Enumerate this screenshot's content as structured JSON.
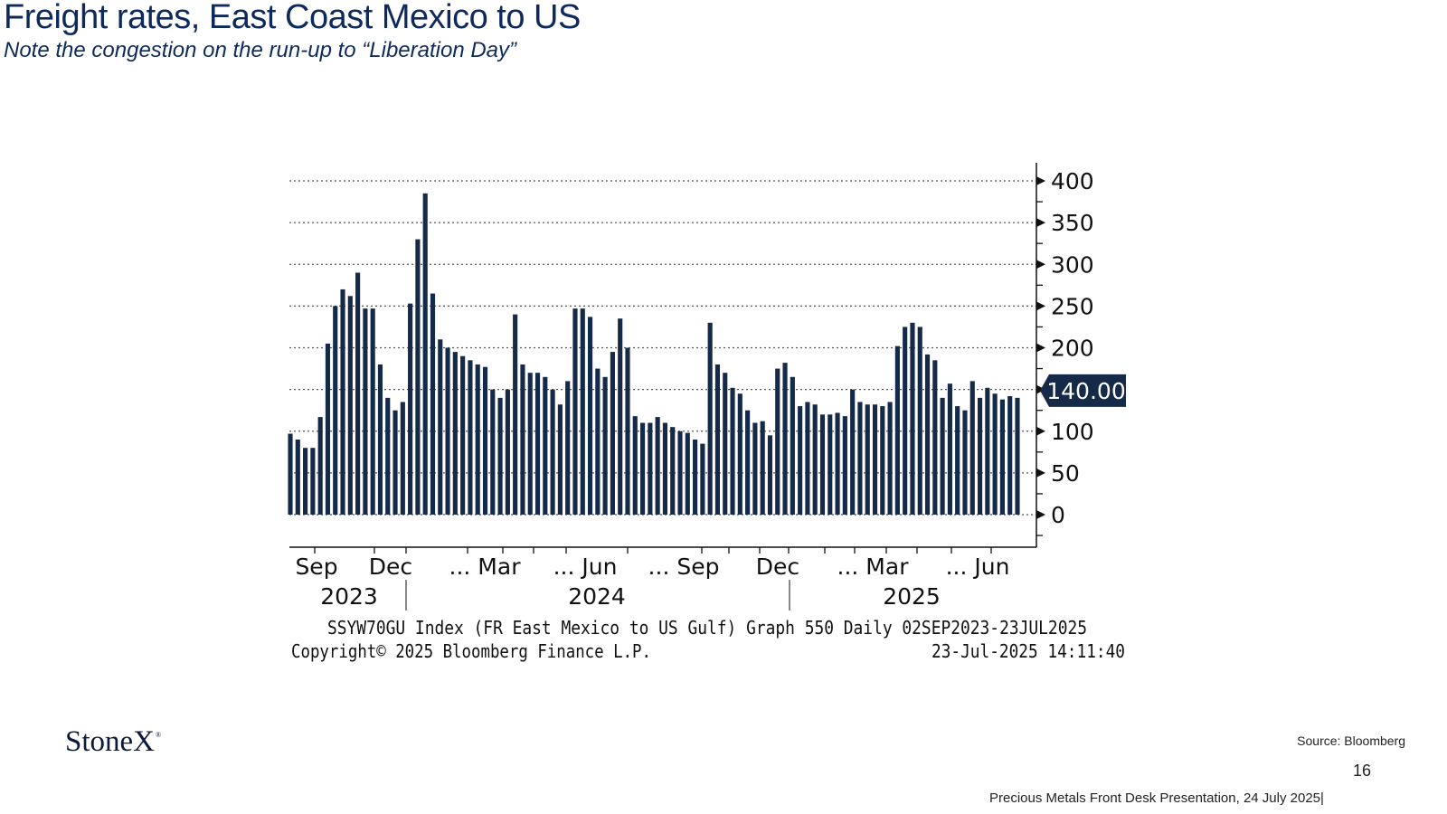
{
  "slide": {
    "title": "Freight rates, East Coast Mexico to US",
    "subtitle": "Note the congestion on the run-up to “Liberation Day”",
    "logo_text": "StoneX",
    "logo_mark": "®",
    "source": "Source: Bloomberg",
    "page_number": "16",
    "footer": "Precious Metals Front Desk Presentation, 24 July 2025|"
  },
  "chart_data": {
    "type": "bar",
    "series_name": "SSYW70GU Index",
    "bar_color": "#152a48",
    "last_value_label": "140.00",
    "ylim": [
      -25,
      420
    ],
    "y_ticks": [
      0,
      50,
      100,
      150,
      200,
      250,
      300,
      350,
      400
    ],
    "y_tick_labels": [
      "0",
      "50",
      "100",
      "",
      "200",
      "250",
      "300",
      "350",
      "400"
    ],
    "x_month_labels": [
      "Sep",
      "Dec",
      "... Mar",
      "... Jun",
      "... Sep",
      "Dec",
      "... Mar",
      "... Jun"
    ],
    "x_year_labels": [
      "2023",
      "2024",
      "2025"
    ],
    "description": "SSYW70GU Index (FR East Mexico to US Gulf) Graph 550  Daily 02SEP2023-23JUL2025",
    "copyright": "Copyright© 2025 Bloomberg Finance L.P.",
    "timestamp": "23-Jul-2025 14:11:40",
    "values": [
      97,
      90,
      80,
      80,
      117,
      205,
      250,
      270,
      262,
      290,
      247,
      247,
      180,
      140,
      125,
      135,
      253,
      330,
      385,
      265,
      210,
      200,
      195,
      190,
      185,
      180,
      177,
      150,
      140,
      150,
      240,
      180,
      170,
      170,
      165,
      150,
      132,
      160,
      247,
      247,
      237,
      175,
      165,
      195,
      235,
      200,
      118,
      110,
      110,
      117,
      110,
      105,
      100,
      98,
      90,
      85,
      230,
      180,
      170,
      152,
      145,
      125,
      110,
      112,
      95,
      175,
      182,
      165,
      130,
      135,
      132,
      120,
      120,
      122,
      118,
      150,
      135,
      132,
      132,
      130,
      135,
      202,
      225,
      230,
      225,
      192,
      185,
      140,
      157,
      130,
      125,
      160,
      140,
      152,
      145,
      138,
      142,
      140
    ]
  }
}
